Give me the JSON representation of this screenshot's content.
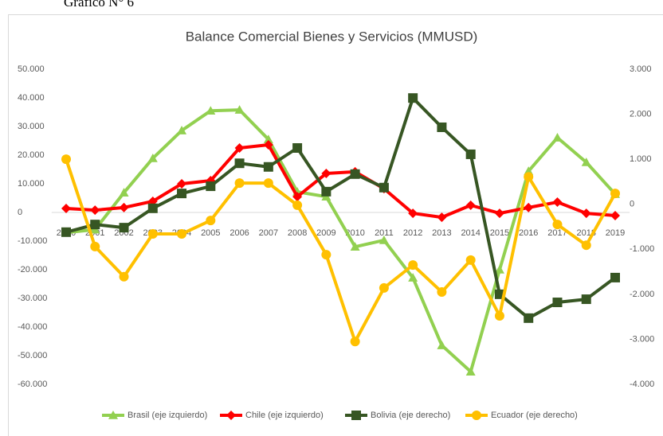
{
  "page_label": "Gráfico N° 6",
  "chart_data": {
    "type": "line",
    "title": "Balance Comercial Bienes y Servicios (MMUSD)",
    "categories": [
      "2000",
      "2001",
      "2002",
      "2003",
      "2004",
      "2005",
      "2006",
      "2007",
      "2008",
      "2009",
      "2010",
      "2011",
      "2012",
      "2013",
      "2014",
      "2015",
      "2016",
      "2017",
      "2018",
      "2019"
    ],
    "series": [
      {
        "name": "Brasil (eje izquierdo)",
        "color": "#92d050",
        "marker": "triangle",
        "axis": "y",
        "values": [
          -7000,
          -6000,
          6900,
          18900,
          28600,
          35500,
          35800,
          25500,
          7200,
          5500,
          -12000,
          -9700,
          -22800,
          -46400,
          -55600,
          -20000,
          14400,
          26100,
          17500,
          6400
        ]
      },
      {
        "name": "Chile (eje izquierdo)",
        "color": "#ff0000",
        "marker": "diamond",
        "axis": "y",
        "values": [
          1400,
          800,
          1700,
          3900,
          10000,
          11100,
          22500,
          23600,
          5500,
          13600,
          14200,
          8300,
          -300,
          -1700,
          2500,
          -300,
          1700,
          3600,
          -300,
          -1100
        ]
      },
      {
        "name": "Bolivia (eje derecho)",
        "color": "#375623",
        "marker": "square",
        "axis": "y2",
        "values": [
          -620,
          -450,
          -520,
          -90,
          240,
          400,
          910,
          830,
          1250,
          280,
          670,
          370,
          2360,
          1710,
          1110,
          -2000,
          -2530,
          -2180,
          -2110,
          -1630
        ]
      },
      {
        "name": "Ecuador (eje derecho)",
        "color": "#ffc000",
        "marker": "circle",
        "axis": "y2",
        "values": [
          1000,
          -940,
          -1610,
          -660,
          -660,
          -360,
          470,
          470,
          -20,
          -1120,
          -3050,
          -1860,
          -1350,
          -1950,
          -1240,
          -2480,
          610,
          -450,
          -910,
          240
        ]
      }
    ],
    "ylim": [
      -60000,
      50000
    ],
    "yticks": [
      {
        "value": 50000,
        "label": "50.000"
      },
      {
        "value": 40000,
        "label": "40.000"
      },
      {
        "value": 30000,
        "label": "30.000"
      },
      {
        "value": 20000,
        "label": "20.000"
      },
      {
        "value": 10000,
        "label": "10.000"
      },
      0,
      {
        "value": -10000,
        "label": "-10.000"
      },
      {
        "value": -20000,
        "label": "-20.000"
      },
      {
        "value": -30000,
        "label": "-30.000"
      },
      {
        "value": -40000,
        "label": "-40.000"
      },
      {
        "value": -50000,
        "label": "-50.000"
      },
      {
        "value": -60000,
        "label": "-60.000"
      }
    ],
    "y2lim": [
      -4000,
      3000
    ],
    "y2ticks": [
      {
        "value": 3000,
        "label": "3.000"
      },
      {
        "value": 2000,
        "label": "2.000"
      },
      {
        "value": 1000,
        "label": "1.000"
      },
      0,
      {
        "value": -1000,
        "label": "-1.000"
      },
      {
        "value": -2000,
        "label": "-2.000"
      },
      {
        "value": -3000,
        "label": "-3.000"
      },
      {
        "value": -4000,
        "label": "-4.000"
      }
    ],
    "grid": false,
    "legend": "bottom"
  }
}
